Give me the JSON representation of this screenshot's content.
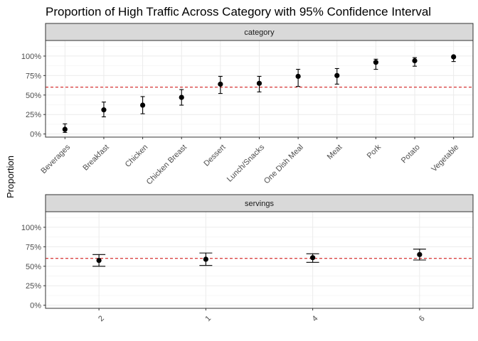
{
  "chart_data": {
    "title": "Proportion of High Traffic Across Category with 95% Confidence Interval",
    "ylabel": "Proportion",
    "reference_line": {
      "value": 0.6,
      "color": "#cc0000",
      "style": "dashed"
    },
    "ylim": [
      -0.04,
      1.2
    ],
    "y_ticks": [
      "0%",
      "25%",
      "50%",
      "75%",
      "100%"
    ],
    "grid": true,
    "panels": [
      {
        "type": "scatter",
        "facet": "category",
        "categories": [
          "Beverages",
          "Breakfast",
          "Chicken",
          "Chicken Breast",
          "Dessert",
          "Lunch/Snacks",
          "One Dish Meal",
          "Meat",
          "Pork",
          "Potato",
          "Vegetable"
        ],
        "values": [
          0.06,
          0.31,
          0.37,
          0.47,
          0.64,
          0.65,
          0.74,
          0.75,
          0.92,
          0.94,
          0.99
        ],
        "lower": [
          0.02,
          0.22,
          0.26,
          0.37,
          0.52,
          0.54,
          0.61,
          0.64,
          0.83,
          0.87,
          0.93
        ],
        "upper": [
          0.13,
          0.41,
          0.48,
          0.57,
          0.74,
          0.74,
          0.83,
          0.84,
          0.96,
          0.98,
          1.0
        ]
      },
      {
        "type": "scatter",
        "facet": "servings",
        "categories": [
          "2",
          "1",
          "4",
          "6"
        ],
        "values": [
          0.575,
          0.59,
          0.61,
          0.65
        ],
        "lower": [
          0.5,
          0.51,
          0.55,
          0.58
        ],
        "upper": [
          0.65,
          0.67,
          0.66,
          0.72
        ]
      }
    ]
  }
}
